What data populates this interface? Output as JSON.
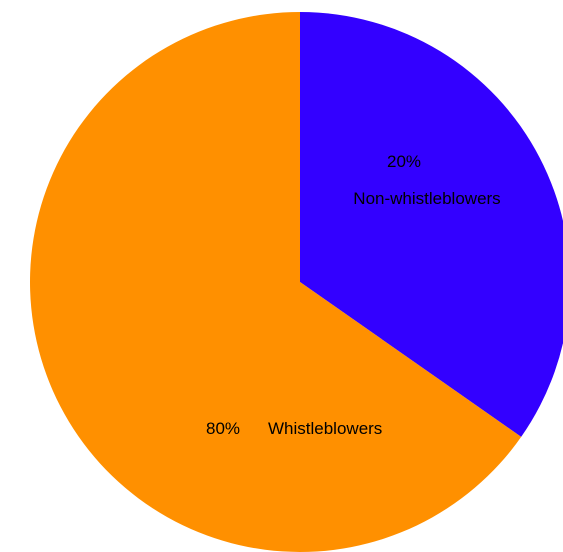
{
  "chart_data": {
    "type": "pie",
    "title": "",
    "labels": [
      "Non-whistleblowers",
      "Whistleblowers"
    ],
    "values": [
      20,
      80
    ],
    "colors": [
      "#3300ff",
      "#ff9000"
    ],
    "slice_labels": [
      {
        "percent": "20%",
        "name": "Non-whistleblowers"
      },
      {
        "percent": "80%",
        "name": "Whistleblowers"
      }
    ],
    "legend": "none"
  }
}
